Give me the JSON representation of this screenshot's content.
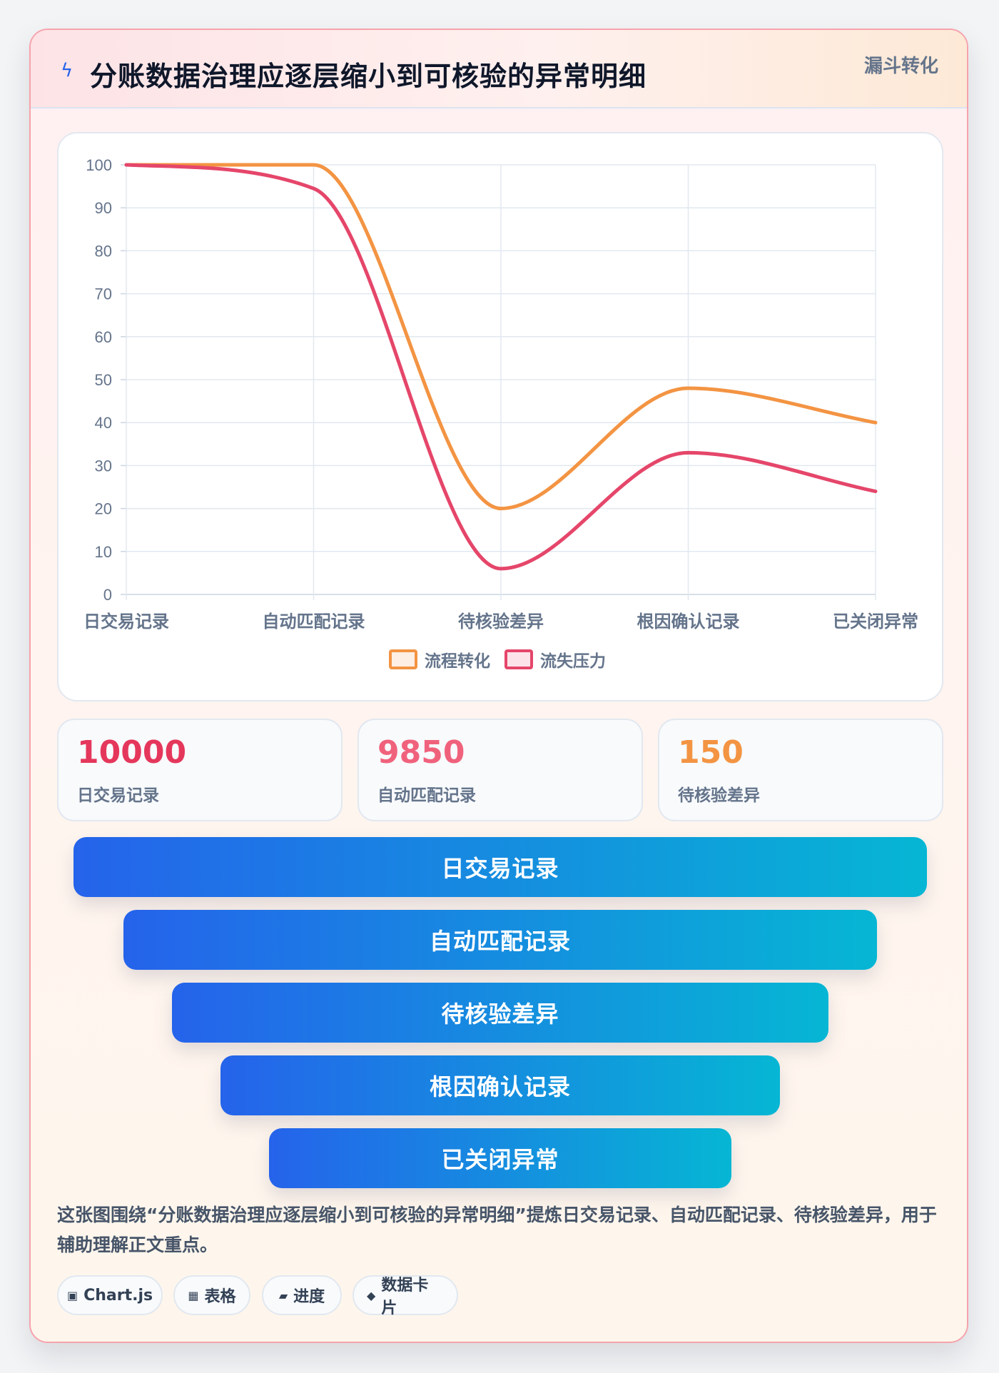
{
  "header": {
    "icon": "lightning-icon",
    "title": "分账数据治理应逐层缩小到可核验的异常明细",
    "tag": "漏斗转化"
  },
  "chart_data": {
    "type": "line",
    "title": "",
    "xlabel": "",
    "ylabel": "",
    "categories": [
      "日交易记录",
      "自动匹配记录",
      "待核验差异",
      "根因确认记录",
      "已关闭异常"
    ],
    "ylim": [
      0,
      100
    ],
    "yticks": [
      0,
      10,
      20,
      30,
      40,
      50,
      60,
      70,
      80,
      90,
      100
    ],
    "grid": true,
    "smooth": true,
    "legend_position": "bottom",
    "series": [
      {
        "name": "流程转化",
        "values": [
          100,
          100,
          20,
          48,
          40
        ],
        "color": "#f39443"
      },
      {
        "name": "流失压力",
        "values": [
          100,
          94.5,
          6,
          33,
          24
        ],
        "color": "#e5466a"
      }
    ]
  },
  "stats": [
    {
      "value": "10000",
      "label": "日交易记录",
      "color": "#e5375b"
    },
    {
      "value": "9850",
      "label": "自动匹配记录",
      "color": "#f0627c"
    },
    {
      "value": "150",
      "label": "待核验差异",
      "color": "#f39443"
    }
  ],
  "funnel": [
    "日交易记录",
    "自动匹配记录",
    "待核验差异",
    "根因确认记录",
    "已关闭异常"
  ],
  "description": "这张图围绕“分账数据治理应逐层缩小到可核验的异常明细”提炼日交易记录、自动匹配记录、待核验差异，用于辅助理解正文重点。",
  "chips": [
    {
      "icon": "▣",
      "icon_name": "chart-icon",
      "label": "Chart.js"
    },
    {
      "icon": "▦",
      "icon_name": "table-icon",
      "label": "表格"
    },
    {
      "icon": "▰",
      "icon_name": "progress-icon",
      "label": "进度"
    },
    {
      "icon": "◆",
      "icon_name": "data-card-icon",
      "label": "数据卡片"
    }
  ]
}
